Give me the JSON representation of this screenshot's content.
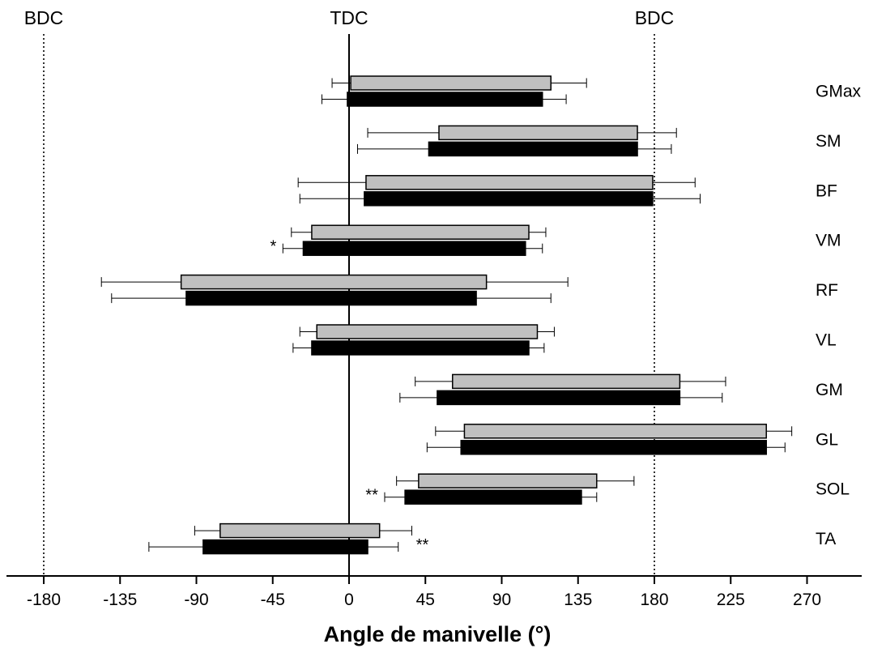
{
  "chart_data": {
    "type": "bar",
    "orientation": "horizontal-floating",
    "title": "",
    "xlabel": "Angle de manivelle (°)",
    "ylabel": "",
    "xlim": [
      -190,
      300
    ],
    "xticks": [
      -180,
      -135,
      -90,
      -45,
      0,
      45,
      90,
      135,
      180,
      225,
      270
    ],
    "reference_lines": [
      {
        "x": -180,
        "label": "BDC",
        "style": "dotted"
      },
      {
        "x": 0,
        "label": "TDC",
        "style": "solid"
      },
      {
        "x": 180,
        "label": "BDC",
        "style": "dotted"
      }
    ],
    "colors": {
      "series_1": "#c0c0c0",
      "series_2": "#000000"
    },
    "categories": [
      "GMax",
      "SM",
      "BF",
      "VM",
      "RF",
      "VL",
      "GM",
      "GL",
      "SOL",
      "TA"
    ],
    "series": [
      {
        "values": [
          {
            "start": 1,
            "end": 119,
            "err_low": 11,
            "err_high": 21
          },
          {
            "start": 53,
            "end": 170,
            "err_low": 42,
            "err_high": 23
          },
          {
            "start": 10,
            "end": 179,
            "err_low": 40,
            "err_high": 25
          },
          {
            "start": -22,
            "end": 106,
            "err_low": 12,
            "err_high": 10
          },
          {
            "start": -99,
            "end": 81,
            "err_low": 47,
            "err_high": 48
          },
          {
            "start": -19,
            "end": 111,
            "err_low": 10,
            "err_high": 10
          },
          {
            "start": 61,
            "end": 195,
            "err_low": 22,
            "err_high": 27
          },
          {
            "start": 68,
            "end": 246,
            "err_low": 17,
            "err_high": 15
          },
          {
            "start": 41,
            "end": 146,
            "err_low": 13,
            "err_high": 22
          },
          {
            "start": -76,
            "end": 18,
            "err_low": 15,
            "err_high": 19
          }
        ]
      },
      {
        "values": [
          {
            "start": -1,
            "end": 114,
            "err_low": 15,
            "err_high": 14
          },
          {
            "start": 47,
            "end": 170,
            "err_low": 42,
            "err_high": 20
          },
          {
            "start": 9,
            "end": 179,
            "err_low": 38,
            "err_high": 28
          },
          {
            "start": -27,
            "end": 104,
            "err_low": 12,
            "err_high": 10
          },
          {
            "start": -96,
            "end": 75,
            "err_low": 44,
            "err_high": 44
          },
          {
            "start": -22,
            "end": 106,
            "err_low": 11,
            "err_high": 9
          },
          {
            "start": 52,
            "end": 195,
            "err_low": 22,
            "err_high": 25
          },
          {
            "start": 66,
            "end": 246,
            "err_low": 20,
            "err_high": 11
          },
          {
            "start": 33,
            "end": 137,
            "err_low": 12,
            "err_high": 9
          },
          {
            "start": -86,
            "end": 11,
            "err_low": 32,
            "err_high": 18
          }
        ]
      }
    ],
    "annotations": [
      {
        "category": "VM",
        "text": "*",
        "position": "left"
      },
      {
        "category": "SOL",
        "text": "**",
        "position": "left"
      },
      {
        "category": "TA",
        "text": "**",
        "position": "right"
      }
    ]
  }
}
